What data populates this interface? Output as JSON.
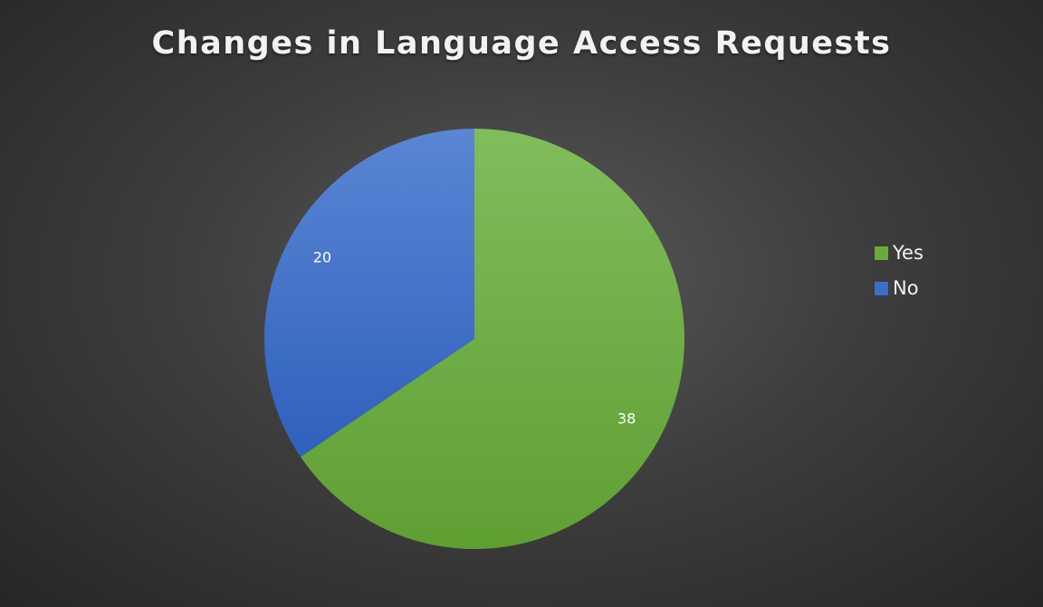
{
  "chart_data": {
    "type": "pie",
    "title": "Changes in Language Access Requests",
    "categories": [
      "Yes",
      "No"
    ],
    "values": [
      38,
      20
    ],
    "data_labels": [
      "38",
      "20"
    ],
    "colors": [
      "#6aaa3a",
      "#3d6fc7"
    ],
    "legend_position": "right",
    "start_angle": "12 o'clock, clockwise"
  }
}
